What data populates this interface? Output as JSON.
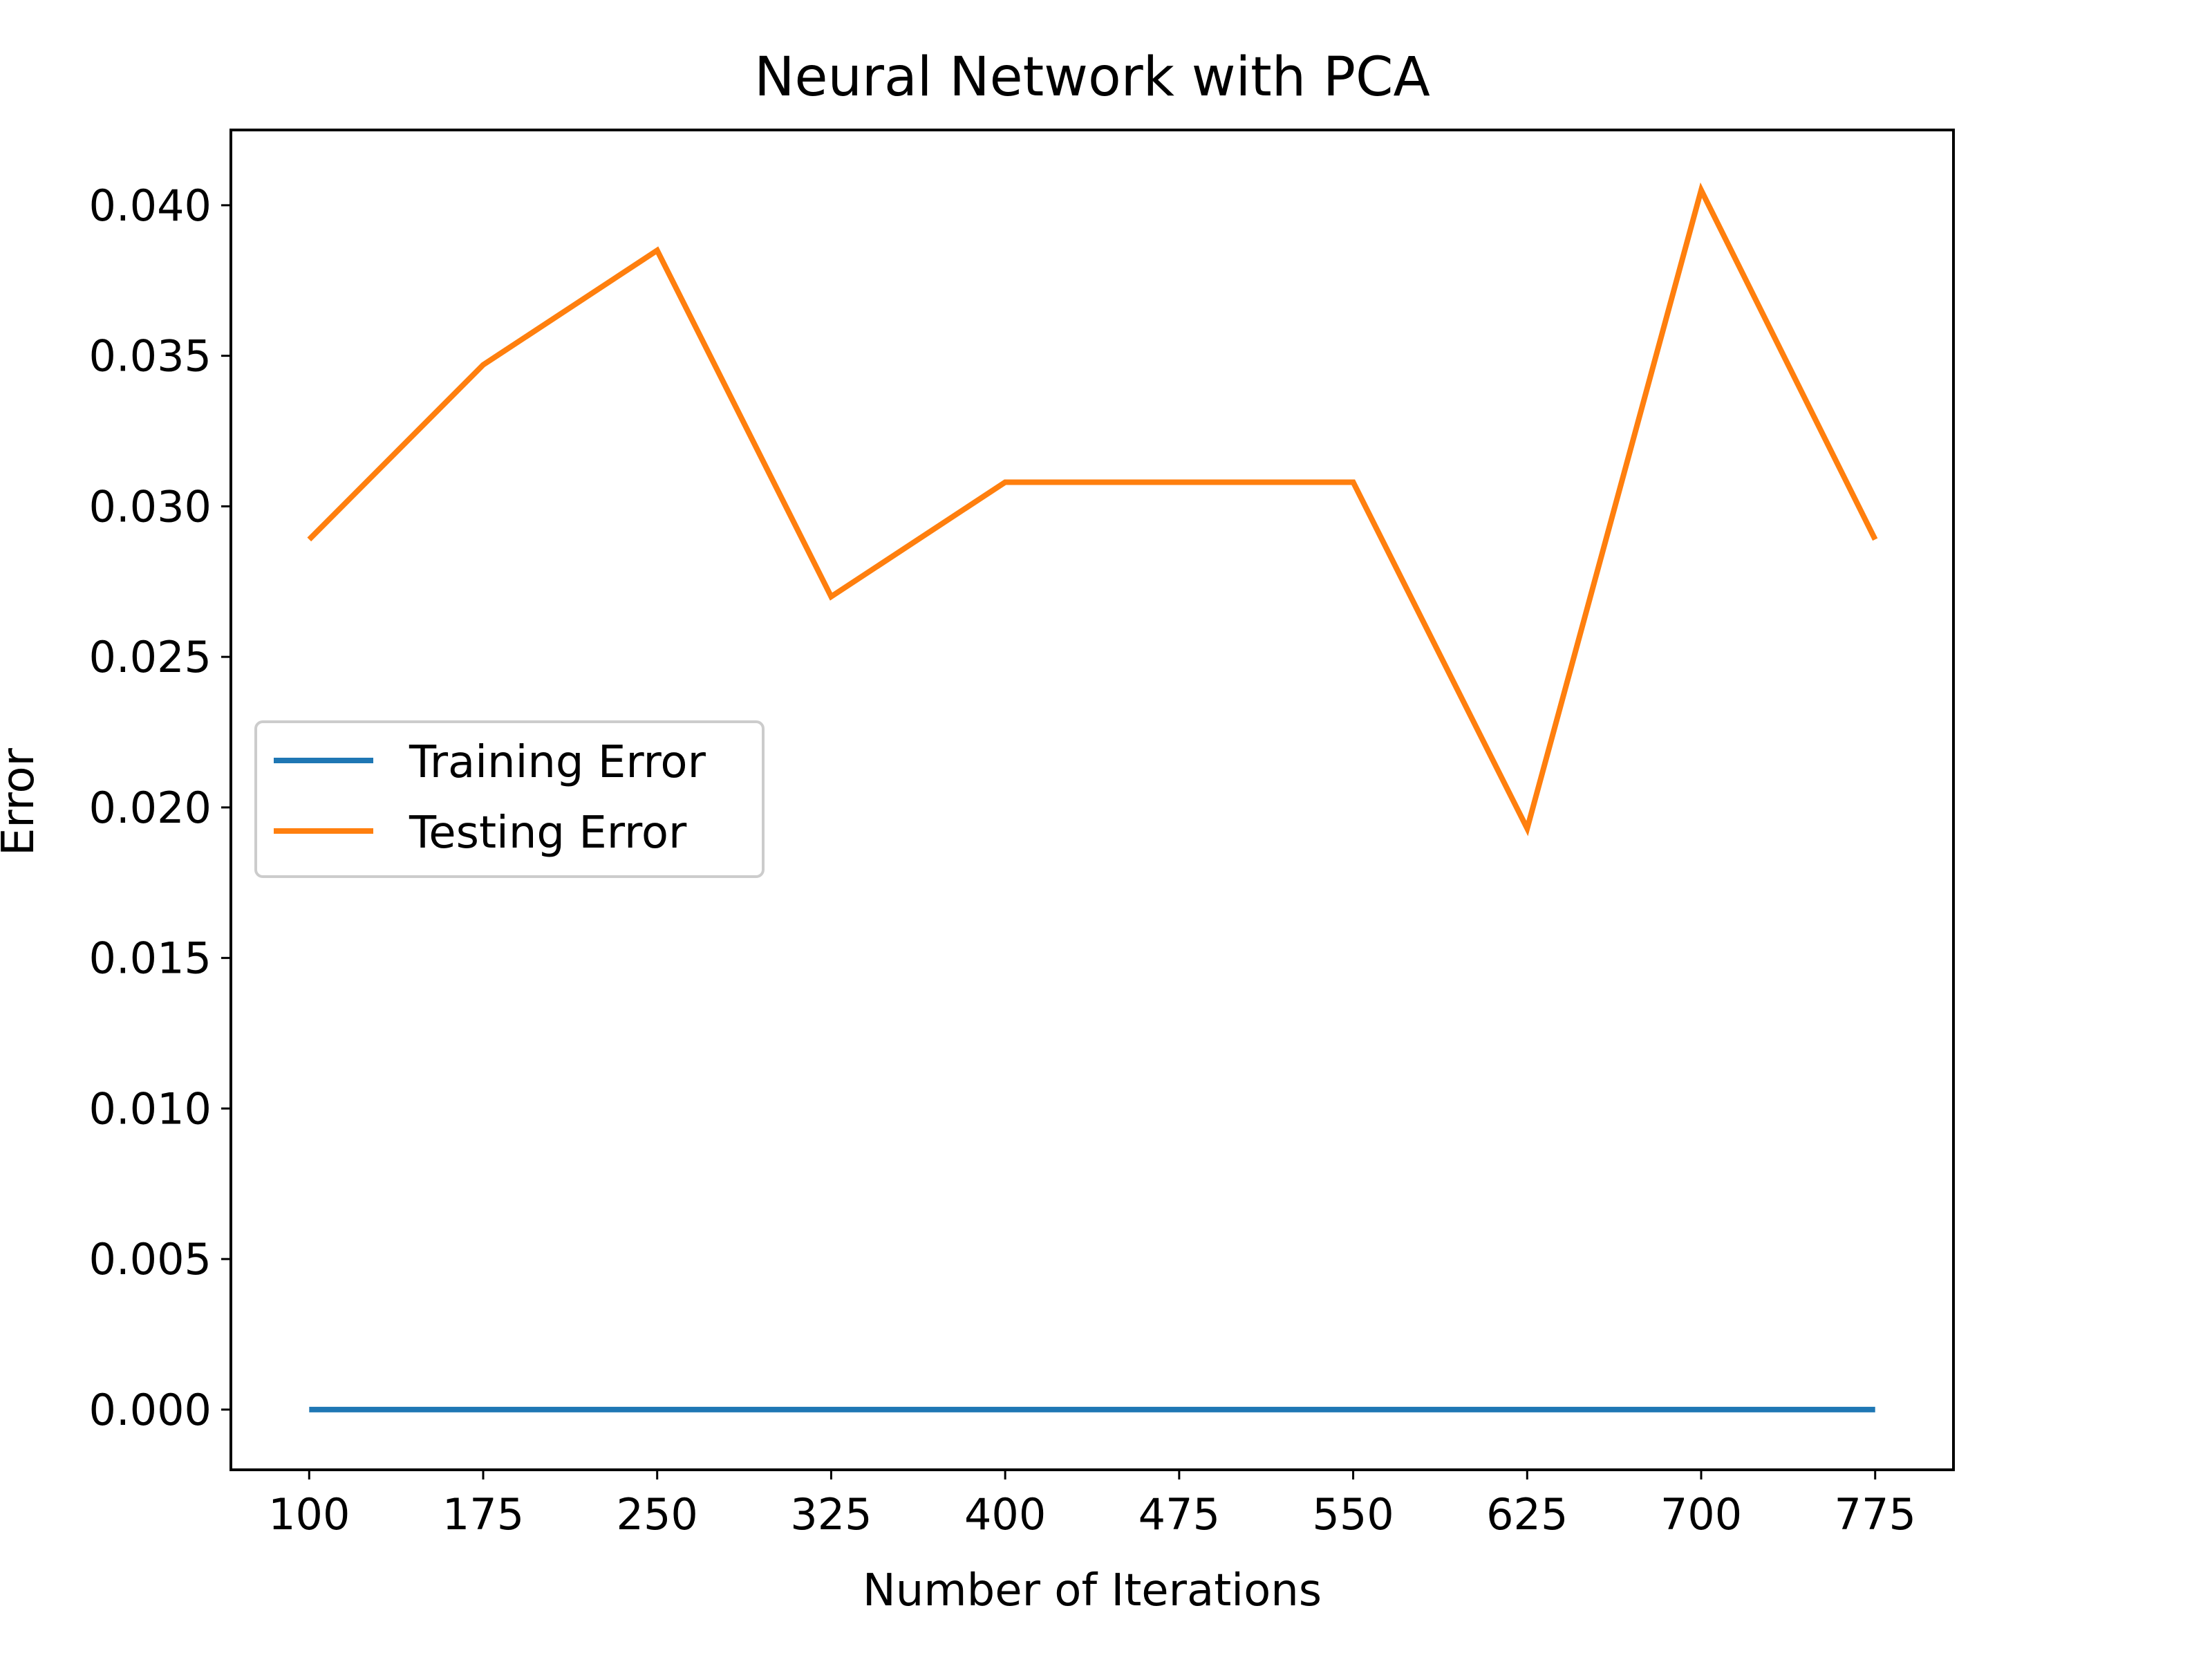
{
  "chart_data": {
    "type": "line",
    "title": "Neural Network with PCA",
    "xlabel": "Number of Iterations",
    "ylabel": "Error",
    "x": [
      100,
      175,
      250,
      325,
      400,
      475,
      550,
      625,
      700,
      775
    ],
    "xticks": [
      "100",
      "175",
      "250",
      "325",
      "400",
      "475",
      "550",
      "625",
      "700",
      "775"
    ],
    "yticks": [
      "0.000",
      "0.005",
      "0.010",
      "0.015",
      "0.020",
      "0.025",
      "0.030",
      "0.035",
      "0.040"
    ],
    "ytick_values": [
      0.0,
      0.005,
      0.01,
      0.015,
      0.02,
      0.025,
      0.03,
      0.035,
      0.04
    ],
    "xlim": [
      66.25,
      808.75
    ],
    "ylim": [
      -0.002,
      0.0425
    ],
    "grid": false,
    "legend_position": "center-left",
    "series": [
      {
        "name": "Training Error",
        "color": "#1f77b4",
        "values": [
          0.0,
          0.0,
          0.0,
          0.0,
          0.0,
          0.0,
          0.0,
          0.0,
          0.0,
          0.0
        ]
      },
      {
        "name": "Testing Error",
        "color": "#ff7f0e",
        "values": [
          0.0289,
          0.0347,
          0.0385,
          0.027,
          0.0308,
          0.0308,
          0.0308,
          0.0193,
          0.0405,
          0.0289
        ]
      }
    ]
  }
}
